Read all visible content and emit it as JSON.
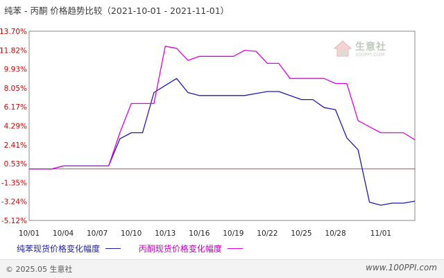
{
  "header": {
    "title": "纯苯 - 丙酮 价格趋势比较（2021-10-01 - 2021-11-01）"
  },
  "watermark": {
    "brand": "生意社",
    "url": "100PPI.COM"
  },
  "footer": {
    "copyright": "© 2025.05 生意社",
    "site": "www.100PPI.com"
  },
  "colors": {
    "series1": "#1a1ab0",
    "series2": "#e000e0",
    "grid": "#c8c8c8",
    "axis": "#888888",
    "tick": "#cc0000",
    "zero": "#cc0000"
  },
  "chart_data": {
    "type": "line",
    "title": "纯苯 - 丙酮 价格趋势比较（2021-10-01 - 2021-11-01）",
    "xlabel": "",
    "ylabel": "",
    "ylim": [
      -5.12,
      13.7
    ],
    "y_ticks": [
      "13.70%",
      "11.82%",
      "9.93%",
      "8.05%",
      "6.17%",
      "4.29%",
      "2.41%",
      "0.53%",
      "-1.35%",
      "-3.24%",
      "-5.12%"
    ],
    "y_tick_values": [
      13.7,
      11.82,
      9.93,
      8.05,
      6.17,
      4.29,
      2.41,
      0.53,
      -1.35,
      -3.24,
      -5.12
    ],
    "x_ticks": [
      "10/01",
      "10/04",
      "10/07",
      "10/10",
      "10/13",
      "10/16",
      "10/19",
      "10/22",
      "10/25",
      "10/28",
      "11/01"
    ],
    "grid": true,
    "legend_position": "bottom",
    "series": [
      {
        "name": "纯苯现货价格变化幅度",
        "points": [
          [
            "10/01",
            0.0
          ],
          [
            "10/03",
            0.0
          ],
          [
            "10/04",
            0.3
          ],
          [
            "10/08",
            0.3
          ],
          [
            "10/09",
            3.0
          ],
          [
            "10/10",
            3.6
          ],
          [
            "10/11",
            3.6
          ],
          [
            "10/12",
            7.6
          ],
          [
            "10/13",
            8.3
          ],
          [
            "10/14",
            9.0
          ],
          [
            "10/15",
            7.6
          ],
          [
            "10/16",
            7.3
          ],
          [
            "10/20",
            7.3
          ],
          [
            "10/21",
            7.5
          ],
          [
            "10/22",
            7.7
          ],
          [
            "10/23",
            7.7
          ],
          [
            "10/25",
            6.9
          ],
          [
            "10/26",
            6.9
          ],
          [
            "10/27",
            6.1
          ],
          [
            "10/28",
            5.9
          ],
          [
            "10/29",
            3.1
          ],
          [
            "10/30",
            1.9
          ],
          [
            "10/31",
            -3.3
          ],
          [
            "11/01",
            -3.6
          ],
          [
            "11/02",
            -3.4
          ],
          [
            "11/03",
            -3.4
          ],
          [
            "11/04",
            -3.2
          ]
        ]
      },
      {
        "name": "丙酮现货价格变化幅度",
        "points": [
          [
            "10/01",
            0.0
          ],
          [
            "10/03",
            0.0
          ],
          [
            "10/04",
            0.3
          ],
          [
            "10/08",
            0.3
          ],
          [
            "10/09",
            3.6
          ],
          [
            "10/10",
            6.5
          ],
          [
            "10/12",
            6.5
          ],
          [
            "10/13",
            12.2
          ],
          [
            "10/14",
            12.0
          ],
          [
            "10/15",
            10.8
          ],
          [
            "10/16",
            11.2
          ],
          [
            "10/19",
            11.2
          ],
          [
            "10/20",
            11.8
          ],
          [
            "10/21",
            11.7
          ],
          [
            "10/22",
            10.5
          ],
          [
            "10/23",
            10.5
          ],
          [
            "10/24",
            9.0
          ],
          [
            "10/27",
            9.0
          ],
          [
            "10/28",
            8.5
          ],
          [
            "10/29",
            8.5
          ],
          [
            "10/30",
            4.8
          ],
          [
            "10/31",
            4.2
          ],
          [
            "11/01",
            3.6
          ],
          [
            "11/03",
            3.6
          ],
          [
            "11/04",
            2.9
          ]
        ]
      }
    ]
  }
}
